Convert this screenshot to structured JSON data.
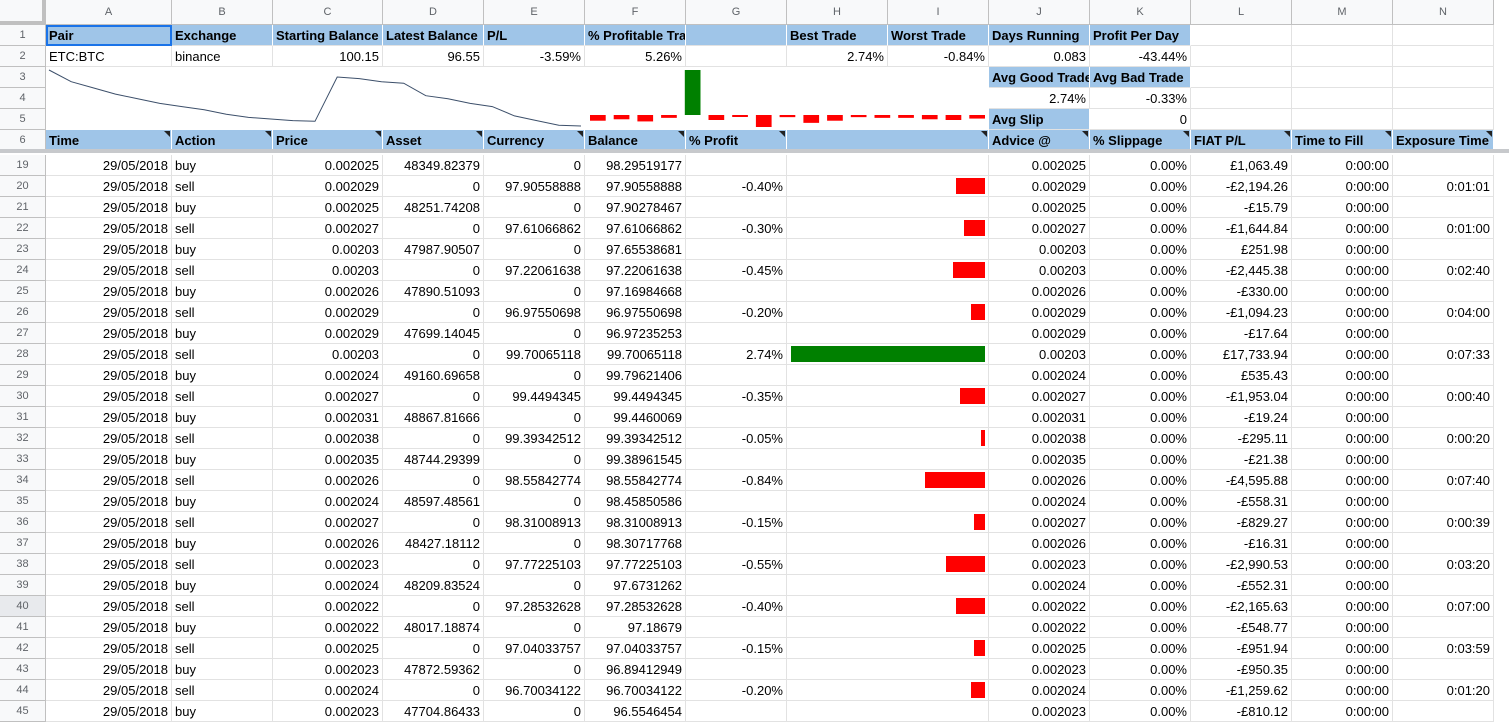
{
  "columns": [
    "A",
    "B",
    "C",
    "D",
    "E",
    "F",
    "G",
    "H",
    "I",
    "J",
    "K",
    "L",
    "M",
    "N"
  ],
  "summary": {
    "headers": [
      "Pair",
      "Exchange",
      "Starting Balance",
      "Latest Balance",
      "P/L",
      "% Profitable Trades",
      "",
      "Best Trade",
      "Worst Trade",
      "Days Running",
      "Profit Per Day"
    ],
    "values": [
      "ETC:BTC",
      "binance",
      "100.15",
      "96.55",
      "-3.59%",
      "5.26%",
      "",
      "2.74%",
      "-0.84%",
      "0.083",
      "-43.44%"
    ],
    "avg_labels": [
      "Avg Good Trade",
      "Avg Bad Trade"
    ],
    "avg_values": [
      "2.74%",
      "-0.33%"
    ],
    "slip_label": "Avg Slip",
    "slip_value": "0"
  },
  "table_headers": [
    "Time",
    "Action",
    "Price",
    "Asset",
    "Currency",
    "Balance",
    "% Profit",
    "",
    "Advice @",
    "% Slippage",
    "FIAT P/L",
    "Time to Fill",
    "Exposure Time"
  ],
  "balance_sparkline": [
    100.15,
    99.4,
    99.0,
    98.6,
    98.3,
    98.0,
    97.8,
    97.6,
    97.3,
    97.1,
    97.0,
    96.9,
    96.85,
    99.7,
    99.6,
    99.4,
    99.3,
    98.5,
    98.3,
    98.0,
    97.8,
    97.2,
    96.9,
    96.6,
    96.55
  ],
  "profit_bars": [
    -0.4,
    -0.3,
    -0.45,
    -0.2,
    2.74,
    -0.35,
    -0.05,
    -0.84,
    -0.15,
    -0.55,
    -0.4,
    -0.15,
    -0.2,
    -0.2,
    -0.3,
    -0.35,
    -0.25
  ],
  "rows": [
    {
      "n": "19",
      "time": "29/05/2018",
      "action": "buy",
      "price": "0.002025",
      "asset": "48349.82379",
      "currency": "0",
      "balance": "98.29519177",
      "profit": "",
      "bar": 0,
      "advice": "0.002025",
      "slip": "0.00%",
      "fiat": "£1,063.49",
      "ttf": "0:00:00",
      "exp": ""
    },
    {
      "n": "20",
      "time": "29/05/2018",
      "action": "sell",
      "price": "0.002029",
      "asset": "0",
      "currency": "97.90558888",
      "balance": "97.90558888",
      "profit": "-0.40%",
      "bar": -0.4,
      "advice": "0.002029",
      "slip": "0.00%",
      "fiat": "-£2,194.26",
      "ttf": "0:00:00",
      "exp": "0:01:01"
    },
    {
      "n": "21",
      "time": "29/05/2018",
      "action": "buy",
      "price": "0.002025",
      "asset": "48251.74208",
      "currency": "0",
      "balance": "97.90278467",
      "profit": "",
      "bar": 0,
      "advice": "0.002025",
      "slip": "0.00%",
      "fiat": "-£15.79",
      "ttf": "0:00:00",
      "exp": ""
    },
    {
      "n": "22",
      "time": "29/05/2018",
      "action": "sell",
      "price": "0.002027",
      "asset": "0",
      "currency": "97.61066862",
      "balance": "97.61066862",
      "profit": "-0.30%",
      "bar": -0.3,
      "advice": "0.002027",
      "slip": "0.00%",
      "fiat": "-£1,644.84",
      "ttf": "0:00:00",
      "exp": "0:01:00"
    },
    {
      "n": "23",
      "time": "29/05/2018",
      "action": "buy",
      "price": "0.00203",
      "asset": "47987.90507",
      "currency": "0",
      "balance": "97.65538681",
      "profit": "",
      "bar": 0,
      "advice": "0.00203",
      "slip": "0.00%",
      "fiat": "£251.98",
      "ttf": "0:00:00",
      "exp": ""
    },
    {
      "n": "24",
      "time": "29/05/2018",
      "action": "sell",
      "price": "0.00203",
      "asset": "0",
      "currency": "97.22061638",
      "balance": "97.22061638",
      "profit": "-0.45%",
      "bar": -0.45,
      "advice": "0.00203",
      "slip": "0.00%",
      "fiat": "-£2,445.38",
      "ttf": "0:00:00",
      "exp": "0:02:40"
    },
    {
      "n": "25",
      "time": "29/05/2018",
      "action": "buy",
      "price": "0.002026",
      "asset": "47890.51093",
      "currency": "0",
      "balance": "97.16984668",
      "profit": "",
      "bar": 0,
      "advice": "0.002026",
      "slip": "0.00%",
      "fiat": "-£330.00",
      "ttf": "0:00:00",
      "exp": ""
    },
    {
      "n": "26",
      "time": "29/05/2018",
      "action": "sell",
      "price": "0.002029",
      "asset": "0",
      "currency": "96.97550698",
      "balance": "96.97550698",
      "profit": "-0.20%",
      "bar": -0.2,
      "advice": "0.002029",
      "slip": "0.00%",
      "fiat": "-£1,094.23",
      "ttf": "0:00:00",
      "exp": "0:04:00"
    },
    {
      "n": "27",
      "time": "29/05/2018",
      "action": "buy",
      "price": "0.002029",
      "asset": "47699.14045",
      "currency": "0",
      "balance": "96.97235253",
      "profit": "",
      "bar": 0,
      "advice": "0.002029",
      "slip": "0.00%",
      "fiat": "-£17.64",
      "ttf": "0:00:00",
      "exp": ""
    },
    {
      "n": "28",
      "time": "29/05/2018",
      "action": "sell",
      "price": "0.00203",
      "asset": "0",
      "currency": "99.70065118",
      "balance": "99.70065118",
      "profit": "2.74%",
      "bar": 2.74,
      "advice": "0.00203",
      "slip": "0.00%",
      "fiat": "£17,733.94",
      "ttf": "0:00:00",
      "exp": "0:07:33"
    },
    {
      "n": "29",
      "time": "29/05/2018",
      "action": "buy",
      "price": "0.002024",
      "asset": "49160.69658",
      "currency": "0",
      "balance": "99.79621406",
      "profit": "",
      "bar": 0,
      "advice": "0.002024",
      "slip": "0.00%",
      "fiat": "£535.43",
      "ttf": "0:00:00",
      "exp": ""
    },
    {
      "n": "30",
      "time": "29/05/2018",
      "action": "sell",
      "price": "0.002027",
      "asset": "0",
      "currency": "99.4494345",
      "balance": "99.4494345",
      "profit": "-0.35%",
      "bar": -0.35,
      "advice": "0.002027",
      "slip": "0.00%",
      "fiat": "-£1,953.04",
      "ttf": "0:00:00",
      "exp": "0:00:40"
    },
    {
      "n": "31",
      "time": "29/05/2018",
      "action": "buy",
      "price": "0.002031",
      "asset": "48867.81666",
      "currency": "0",
      "balance": "99.4460069",
      "profit": "",
      "bar": 0,
      "advice": "0.002031",
      "slip": "0.00%",
      "fiat": "-£19.24",
      "ttf": "0:00:00",
      "exp": ""
    },
    {
      "n": "32",
      "time": "29/05/2018",
      "action": "sell",
      "price": "0.002038",
      "asset": "0",
      "currency": "99.39342512",
      "balance": "99.39342512",
      "profit": "-0.05%",
      "bar": -0.05,
      "advice": "0.002038",
      "slip": "0.00%",
      "fiat": "-£295.11",
      "ttf": "0:00:00",
      "exp": "0:00:20"
    },
    {
      "n": "33",
      "time": "29/05/2018",
      "action": "buy",
      "price": "0.002035",
      "asset": "48744.29399",
      "currency": "0",
      "balance": "99.38961545",
      "profit": "",
      "bar": 0,
      "advice": "0.002035",
      "slip": "0.00%",
      "fiat": "-£21.38",
      "ttf": "0:00:00",
      "exp": ""
    },
    {
      "n": "34",
      "time": "29/05/2018",
      "action": "sell",
      "price": "0.002026",
      "asset": "0",
      "currency": "98.55842774",
      "balance": "98.55842774",
      "profit": "-0.84%",
      "bar": -0.84,
      "advice": "0.002026",
      "slip": "0.00%",
      "fiat": "-£4,595.88",
      "ttf": "0:00:00",
      "exp": "0:07:40"
    },
    {
      "n": "35",
      "time": "29/05/2018",
      "action": "buy",
      "price": "0.002024",
      "asset": "48597.48561",
      "currency": "0",
      "balance": "98.45850586",
      "profit": "",
      "bar": 0,
      "advice": "0.002024",
      "slip": "0.00%",
      "fiat": "-£558.31",
      "ttf": "0:00:00",
      "exp": ""
    },
    {
      "n": "36",
      "time": "29/05/2018",
      "action": "sell",
      "price": "0.002027",
      "asset": "0",
      "currency": "98.31008913",
      "balance": "98.31008913",
      "profit": "-0.15%",
      "bar": -0.15,
      "advice": "0.002027",
      "slip": "0.00%",
      "fiat": "-£829.27",
      "ttf": "0:00:00",
      "exp": "0:00:39"
    },
    {
      "n": "37",
      "time": "29/05/2018",
      "action": "buy",
      "price": "0.002026",
      "asset": "48427.18112",
      "currency": "0",
      "balance": "98.30717768",
      "profit": "",
      "bar": 0,
      "advice": "0.002026",
      "slip": "0.00%",
      "fiat": "-£16.31",
      "ttf": "0:00:00",
      "exp": ""
    },
    {
      "n": "38",
      "time": "29/05/2018",
      "action": "sell",
      "price": "0.002023",
      "asset": "0",
      "currency": "97.77225103",
      "balance": "97.77225103",
      "profit": "-0.55%",
      "bar": -0.55,
      "advice": "0.002023",
      "slip": "0.00%",
      "fiat": "-£2,990.53",
      "ttf": "0:00:00",
      "exp": "0:03:20"
    },
    {
      "n": "39",
      "time": "29/05/2018",
      "action": "buy",
      "price": "0.002024",
      "asset": "48209.83524",
      "currency": "0",
      "balance": "97.6731262",
      "profit": "",
      "bar": 0,
      "advice": "0.002024",
      "slip": "0.00%",
      "fiat": "-£552.31",
      "ttf": "0:00:00",
      "exp": ""
    },
    {
      "n": "40",
      "time": "29/05/2018",
      "action": "sell",
      "price": "0.002022",
      "asset": "0",
      "currency": "97.28532628",
      "balance": "97.28532628",
      "profit": "-0.40%",
      "bar": -0.4,
      "advice": "0.002022",
      "slip": "0.00%",
      "fiat": "-£2,165.63",
      "ttf": "0:00:00",
      "exp": "0:07:00"
    },
    {
      "n": "41",
      "time": "29/05/2018",
      "action": "buy",
      "price": "0.002022",
      "asset": "48017.18874",
      "currency": "0",
      "balance": "97.18679",
      "profit": "",
      "bar": 0,
      "advice": "0.002022",
      "slip": "0.00%",
      "fiat": "-£548.77",
      "ttf": "0:00:00",
      "exp": ""
    },
    {
      "n": "42",
      "time": "29/05/2018",
      "action": "sell",
      "price": "0.002025",
      "asset": "0",
      "currency": "97.04033757",
      "balance": "97.04033757",
      "profit": "-0.15%",
      "bar": -0.15,
      "advice": "0.002025",
      "slip": "0.00%",
      "fiat": "-£951.94",
      "ttf": "0:00:00",
      "exp": "0:03:59"
    },
    {
      "n": "43",
      "time": "29/05/2018",
      "action": "buy",
      "price": "0.002023",
      "asset": "47872.59362",
      "currency": "0",
      "balance": "96.89412949",
      "profit": "",
      "bar": 0,
      "advice": "0.002023",
      "slip": "0.00%",
      "fiat": "-£950.35",
      "ttf": "0:00:00",
      "exp": ""
    },
    {
      "n": "44",
      "time": "29/05/2018",
      "action": "sell",
      "price": "0.002024",
      "asset": "0",
      "currency": "96.70034122",
      "balance": "96.70034122",
      "profit": "-0.20%",
      "bar": -0.2,
      "advice": "0.002024",
      "slip": "0.00%",
      "fiat": "-£1,259.62",
      "ttf": "0:00:00",
      "exp": "0:01:20"
    },
    {
      "n": "45",
      "time": "29/05/2018",
      "action": "buy",
      "price": "0.002023",
      "asset": "47704.86433",
      "currency": "0",
      "balance": "96.5546454",
      "profit": "",
      "bar": 0,
      "advice": "0.002023",
      "slip": "0.00%",
      "fiat": "-£810.12",
      "ttf": "0:00:00",
      "exp": ""
    }
  ],
  "colors": {
    "header_bg": "#9fc5e8",
    "positive": "#008000",
    "negative": "#ff0000",
    "line": "#3c4f6a"
  }
}
